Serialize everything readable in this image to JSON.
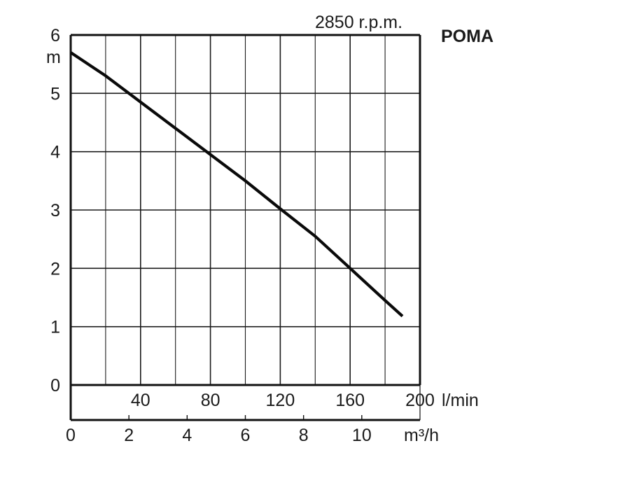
{
  "chart_data": {
    "type": "line",
    "title": "POMA",
    "subtitle": "2850 r.p.m.",
    "ylabel": "m",
    "x_primary_unit": "l/min",
    "x_secondary_unit": "m³/h",
    "xlim": [
      0,
      200
    ],
    "ylim": [
      0,
      6
    ],
    "grid": true,
    "y_ticks": [
      0,
      1,
      2,
      3,
      4,
      5,
      6
    ],
    "x_primary_ticks": [
      40,
      80,
      120,
      160,
      200
    ],
    "x_secondary_ticks": [
      0,
      2,
      4,
      6,
      8,
      10
    ],
    "series": [
      {
        "x": [
          0,
          20,
          40,
          60,
          80,
          100,
          120,
          140,
          160,
          180,
          190
        ],
        "y": [
          5.7,
          5.3,
          4.85,
          4.4,
          3.95,
          3.5,
          3.02,
          2.55,
          2.0,
          1.45,
          1.18
        ]
      }
    ]
  }
}
